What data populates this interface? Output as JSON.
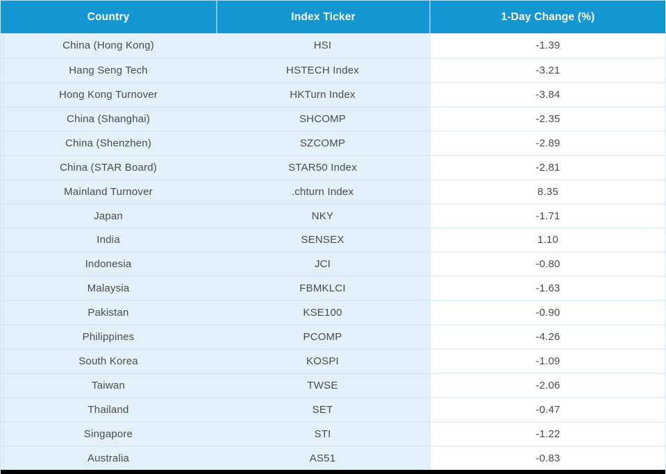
{
  "table": {
    "columns": [
      "Country",
      "Index Ticker",
      "1-Day Change (%)"
    ],
    "rows": [
      {
        "country": "China (Hong Kong)",
        "ticker": "HSI",
        "change": "-1.39"
      },
      {
        "country": "Hang Seng Tech",
        "ticker": "HSTECH Index",
        "change": "-3.21"
      },
      {
        "country": "Hong Kong Turnover",
        "ticker": "HKTurn Index",
        "change": "-3.84"
      },
      {
        "country": "China (Shanghai)",
        "ticker": "SHCOMP",
        "change": "-2.35"
      },
      {
        "country": "China (Shenzhen)",
        "ticker": "SZCOMP",
        "change": "-2.89"
      },
      {
        "country": "China (STAR Board)",
        "ticker": "STAR50 Index",
        "change": "-2.81"
      },
      {
        "country": "Mainland Turnover",
        "ticker": ".chturn Index",
        "change": "8.35"
      },
      {
        "country": "Japan",
        "ticker": "NKY",
        "change": "-1.71"
      },
      {
        "country": "India",
        "ticker": "SENSEX",
        "change": "1.10"
      },
      {
        "country": "Indonesia",
        "ticker": "JCI",
        "change": "-0.80"
      },
      {
        "country": "Malaysia",
        "ticker": "FBMKLCI",
        "change": "-1.63"
      },
      {
        "country": "Pakistan",
        "ticker": "KSE100",
        "change": "-0.90"
      },
      {
        "country": "Philippines",
        "ticker": "PCOMP",
        "change": "-4.26"
      },
      {
        "country": "South Korea",
        "ticker": "KOSPI",
        "change": "-1.09"
      },
      {
        "country": "Taiwan",
        "ticker": "TWSE",
        "change": "-2.06"
      },
      {
        "country": "Thailand",
        "ticker": "SET",
        "change": "-0.47"
      },
      {
        "country": "Singapore",
        "ticker": "STI",
        "change": "-1.22"
      },
      {
        "country": "Australia",
        "ticker": "AS51",
        "change": "-0.83"
      }
    ]
  },
  "chart_data": {
    "type": "table",
    "columns": [
      "Country",
      "Index Ticker",
      "1-Day Change (%)"
    ],
    "rows": [
      [
        "China (Hong Kong)",
        "HSI",
        -1.39
      ],
      [
        "Hang Seng Tech",
        "HSTECH Index",
        -3.21
      ],
      [
        "Hong Kong Turnover",
        "HKTurn Index",
        -3.84
      ],
      [
        "China (Shanghai)",
        "SHCOMP",
        -2.35
      ],
      [
        "China (Shenzhen)",
        "SZCOMP",
        -2.89
      ],
      [
        "China (STAR Board)",
        "STAR50 Index",
        -2.81
      ],
      [
        "Mainland Turnover",
        ".chturn Index",
        8.35
      ],
      [
        "Japan",
        "NKY",
        -1.71
      ],
      [
        "India",
        "SENSEX",
        1.1
      ],
      [
        "Indonesia",
        "JCI",
        -0.8
      ],
      [
        "Malaysia",
        "FBMKLCI",
        -1.63
      ],
      [
        "Pakistan",
        "KSE100",
        -0.9
      ],
      [
        "Philippines",
        "PCOMP",
        -4.26
      ],
      [
        "South Korea",
        "KOSPI",
        -1.09
      ],
      [
        "Taiwan",
        "TWSE",
        -2.06
      ],
      [
        "Thailand",
        "SET",
        -0.47
      ],
      [
        "Singapore",
        "STI",
        -1.22
      ],
      [
        "Australia",
        "AS51",
        -0.83
      ]
    ]
  },
  "colors": {
    "header_bg": "#1496D3",
    "header_text": "#FFFFFF",
    "row_bg": "#E1F0F9",
    "value_col_bg": "#FFFFFF",
    "grid_line": "#D5EAF5",
    "body_text": "#4A4B4E",
    "bottom_bar": "#000000"
  }
}
